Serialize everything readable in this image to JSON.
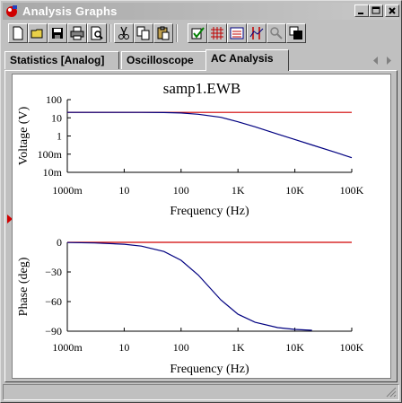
{
  "window": {
    "title": "Analysis Graphs"
  },
  "toolbar": {
    "buttons": [
      "new-icon",
      "open-icon",
      "save-icon",
      "print-icon",
      "print-preview-icon",
      "cut-icon",
      "copy-icon",
      "paste-icon",
      "properties-icon",
      "toggle-grid-icon",
      "toggle-legend-icon",
      "toggle-cursors-icon",
      "zoom-icon",
      "reverse-colors-icon"
    ]
  },
  "tabs": [
    {
      "label": "Statistics [Analog]"
    },
    {
      "label": "Oscilloscope"
    },
    {
      "label": "AC Analysis",
      "active": true
    }
  ],
  "graph": {
    "title": "samp1.EWB"
  },
  "colors": {
    "trace_reference": "#d00000",
    "trace_response": "#000080"
  },
  "chart_data": [
    {
      "type": "line",
      "title": "samp1.EWB",
      "xlabel": "Frequency (Hz)",
      "ylabel": "Voltage (V)",
      "xscale": "log",
      "yscale": "log",
      "xlim": [
        1,
        100000
      ],
      "ylim": [
        0.01,
        100
      ],
      "xticks": [
        "1000m",
        "10",
        "100",
        "1K",
        "10K",
        "100K"
      ],
      "yticks": [
        "100",
        "10",
        "1",
        "100m",
        "10m"
      ],
      "grid": false,
      "series": [
        {
          "color": "#d00000",
          "x": [
            1,
            10,
            100,
            1000,
            10000,
            100000
          ],
          "y": [
            20,
            20,
            20,
            20,
            20,
            20
          ]
        },
        {
          "color": "#000080",
          "x": [
            1,
            10,
            20,
            50,
            100,
            200,
            500,
            1000,
            2000,
            5000,
            10000,
            20000,
            50000,
            100000
          ],
          "y": [
            20,
            20,
            19.9,
            19.5,
            18.3,
            15.6,
            10.6,
            6.0,
            3.2,
            1.27,
            0.64,
            0.32,
            0.13,
            0.064
          ]
        }
      ]
    },
    {
      "type": "line",
      "xlabel": "Frequency (Hz)",
      "ylabel": "Phase (deg)",
      "xscale": "log",
      "xlim": [
        1,
        100000
      ],
      "ylim": [
        -90,
        0
      ],
      "xticks": [
        "1000m",
        "10",
        "100",
        "1K",
        "10K",
        "100K"
      ],
      "yticks": [
        "0",
        "−30",
        "−60",
        "−90"
      ],
      "grid": false,
      "series": [
        {
          "color": "#d00000",
          "x": [
            1,
            10,
            100,
            1000,
            10000,
            100000
          ],
          "y": [
            0,
            0,
            0,
            0,
            0,
            0
          ]
        },
        {
          "color": "#000080",
          "x": [
            1,
            3,
            10,
            20,
            50,
            100,
            200,
            500,
            1000,
            2000,
            5000,
            10000,
            20000
          ],
          "y": [
            -0.2,
            -0.6,
            -1.9,
            -3.8,
            -9.3,
            -18.2,
            -33.1,
            -58.3,
            -72.8,
            -81.0,
            -86.4,
            -88.2,
            -89.1
          ]
        }
      ]
    }
  ]
}
